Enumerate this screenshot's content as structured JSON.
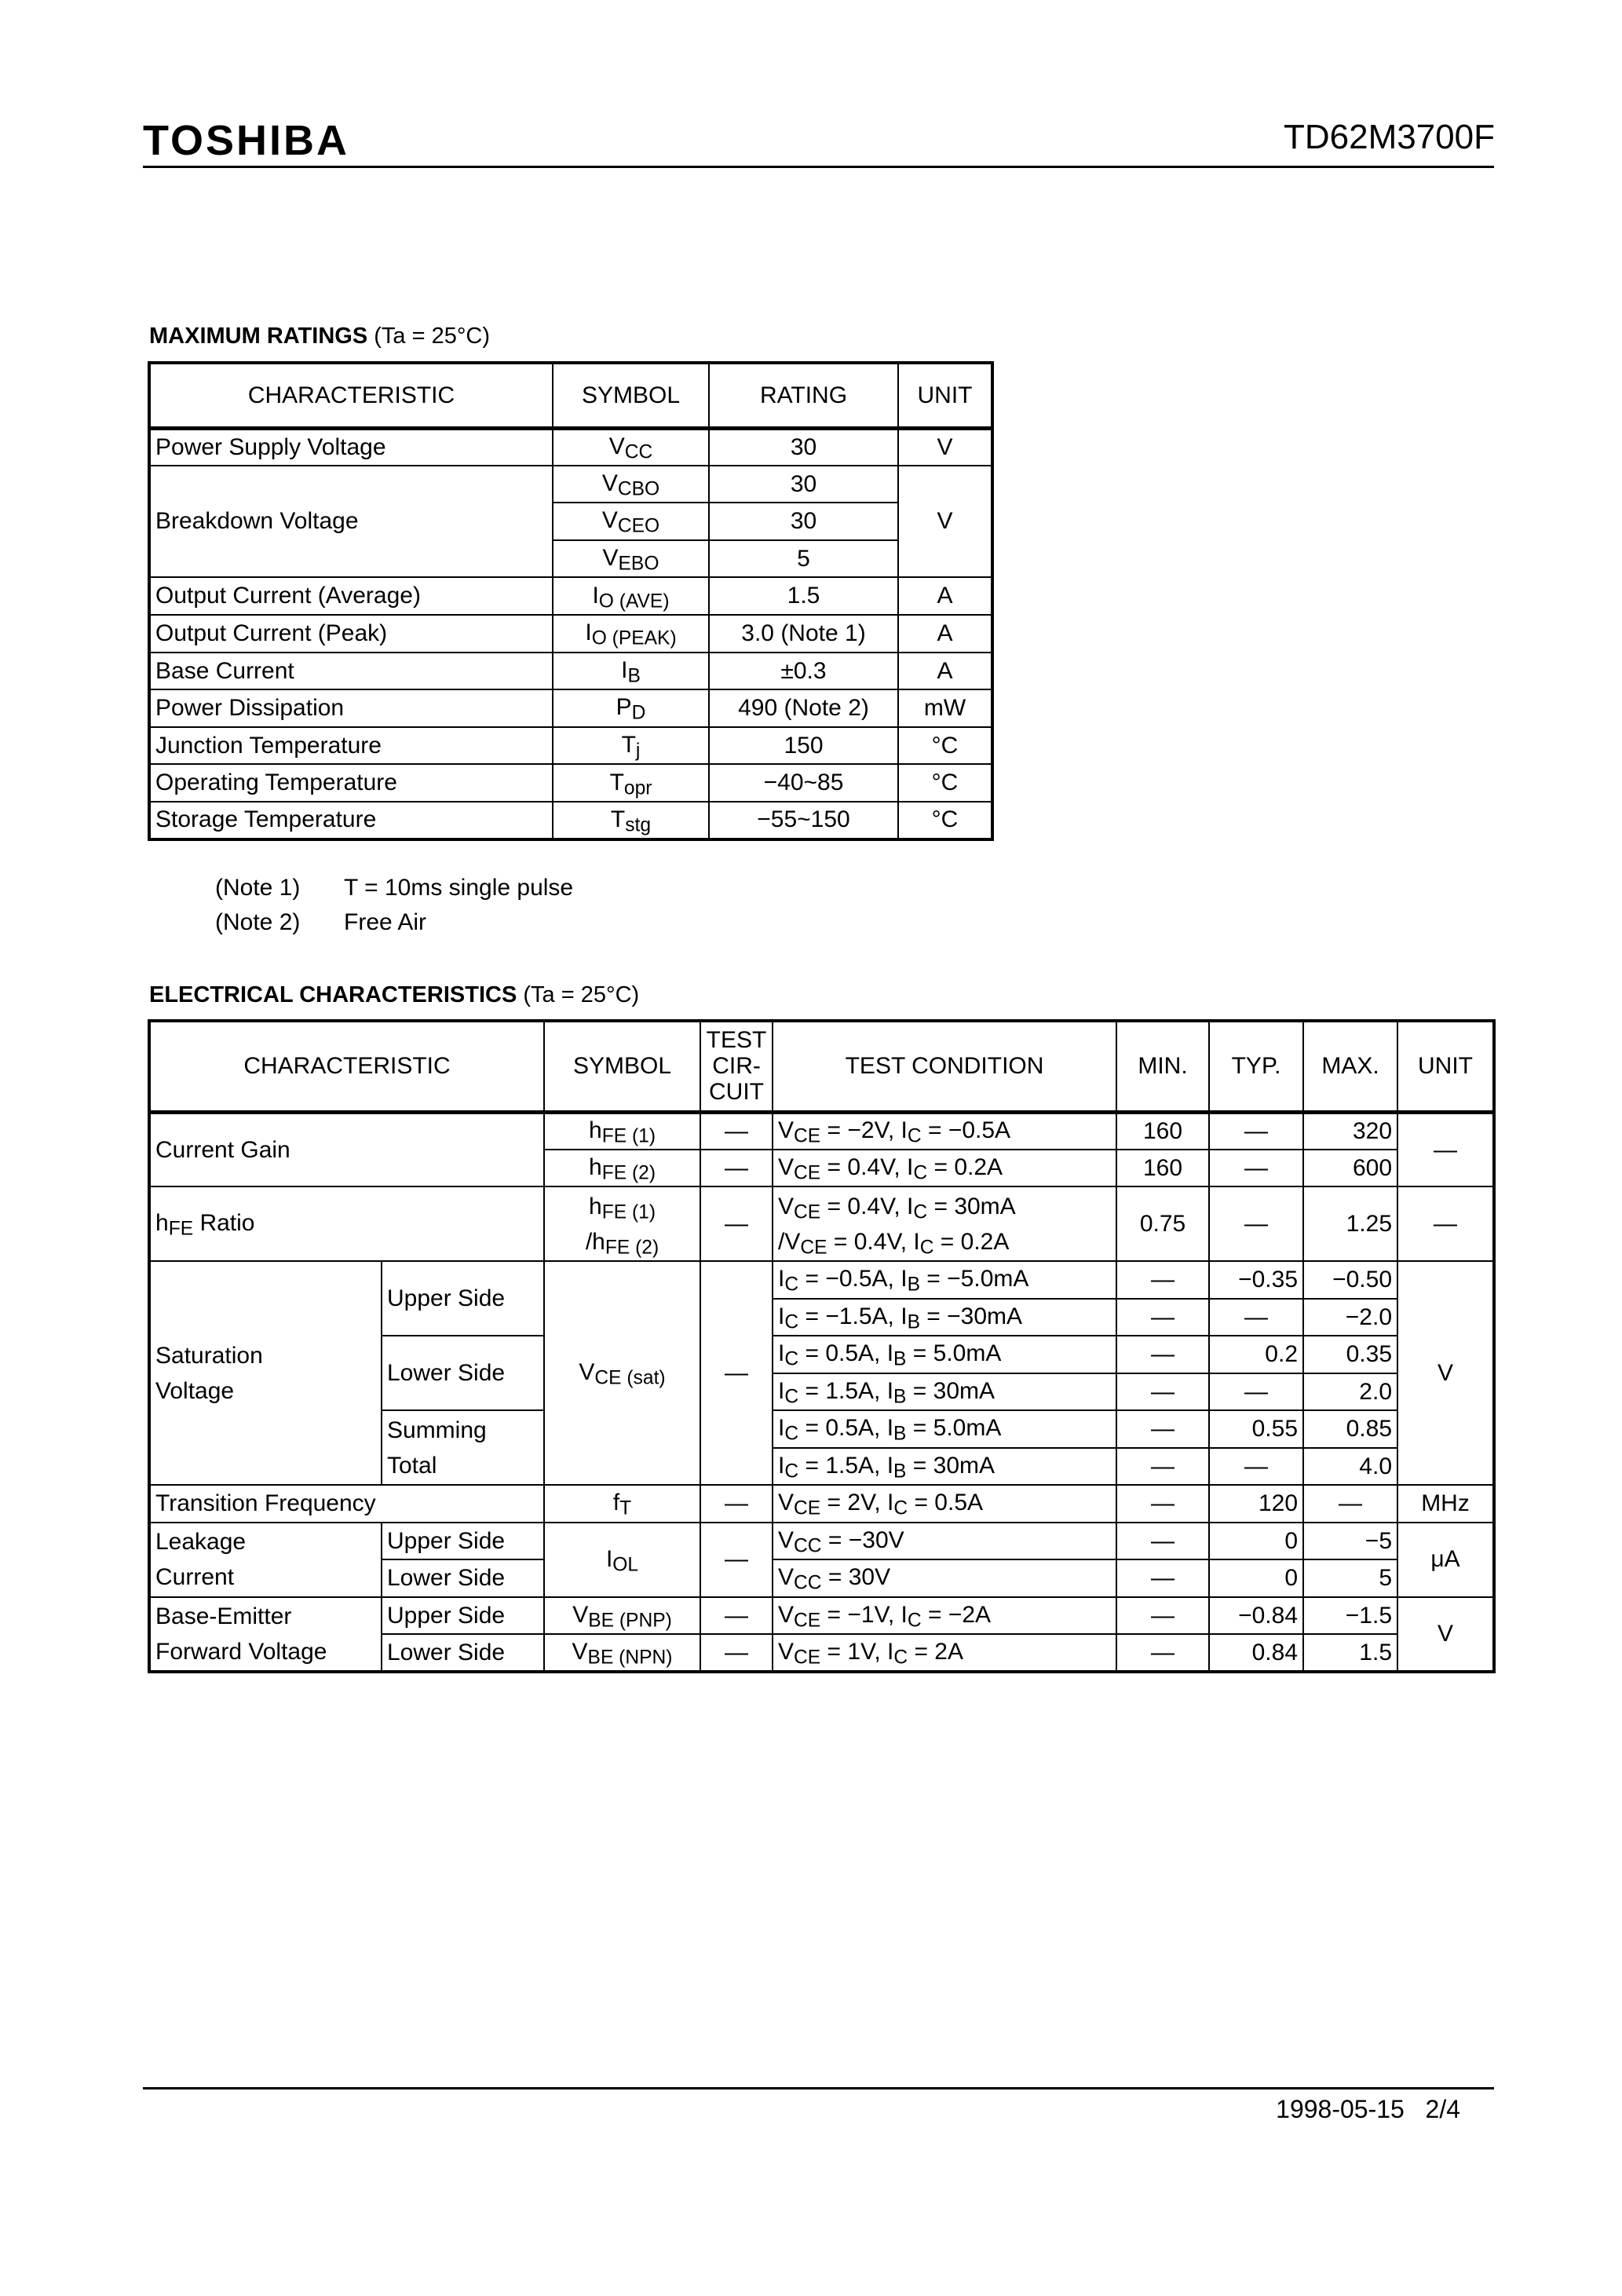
{
  "header": {
    "logo": "TOSHIBA",
    "part_number": "TD62M3700F"
  },
  "max_ratings": {
    "title": "MAXIMUM RATINGS",
    "condition": "(Ta = 25°C)",
    "columns": [
      "CHARACTERISTIC",
      "SYMBOL",
      "RATING",
      "UNIT"
    ],
    "rows": [
      [
        {
          "t": "Power Supply Voltage",
          "a": "l"
        },
        {
          "t": "V_{CC}"
        },
        {
          "t": "30"
        },
        {
          "t": "V"
        }
      ],
      [
        {
          "t": "Breakdown Voltage",
          "a": "l",
          "rs": 3
        },
        {
          "t": "V_{CBO}"
        },
        {
          "t": "30"
        },
        {
          "t": "V",
          "rs": 3
        }
      ],
      [
        {
          "t": "V_{CEO}"
        },
        {
          "t": "30"
        }
      ],
      [
        {
          "t": "V_{EBO}"
        },
        {
          "t": "5"
        }
      ],
      [
        {
          "t": "Output Current (Average)",
          "a": "l"
        },
        {
          "t": "I_{O (AVE)}"
        },
        {
          "t": "1.5"
        },
        {
          "t": "A"
        }
      ],
      [
        {
          "t": "Output Current (Peak)",
          "a": "l"
        },
        {
          "t": "I_{O (PEAK)}"
        },
        {
          "t": "3.0 (Note 1)"
        },
        {
          "t": "A"
        }
      ],
      [
        {
          "t": "Base Current",
          "a": "l"
        },
        {
          "t": "I_{B}"
        },
        {
          "t": "±0.3"
        },
        {
          "t": "A"
        }
      ],
      [
        {
          "t": "Power Dissipation",
          "a": "l"
        },
        {
          "t": "P_{D}"
        },
        {
          "t": "490 (Note 2)"
        },
        {
          "t": "mW"
        }
      ],
      [
        {
          "t": "Junction Temperature",
          "a": "l"
        },
        {
          "t": "T_{j}"
        },
        {
          "t": "150"
        },
        {
          "t": "°C"
        }
      ],
      [
        {
          "t": "Operating Temperature",
          "a": "l"
        },
        {
          "t": "T_{opr}"
        },
        {
          "t": "−40~85"
        },
        {
          "t": "°C"
        }
      ],
      [
        {
          "t": "Storage Temperature",
          "a": "l"
        },
        {
          "t": "T_{stg}"
        },
        {
          "t": "−55~150"
        },
        {
          "t": "°C"
        }
      ]
    ],
    "notes": [
      {
        "label": "(Note 1)",
        "text": "T = 10ms single pulse"
      },
      {
        "label": "(Note 2)",
        "text": "Free Air"
      }
    ]
  },
  "electrical": {
    "title": "ELECTRICAL CHARACTERISTICS",
    "condition": "(Ta = 25°C)",
    "header": [
      {
        "t": "CHARACTERISTIC",
        "cs": 2
      },
      {
        "t": "SYMBOL"
      },
      {
        "t": "TEST\nCIR-\nCUIT"
      },
      {
        "t": "TEST CONDITION"
      },
      {
        "t": "MIN."
      },
      {
        "t": "TYP."
      },
      {
        "t": "MAX."
      },
      {
        "t": "UNIT"
      }
    ],
    "rows": [
      [
        {
          "t": "Current Gain",
          "a": "l",
          "cs": 2,
          "rs": 2
        },
        {
          "t": "h_{FE (1)}"
        },
        {
          "t": "—"
        },
        {
          "t": "V_{CE} = −2V, I_{C} = −0.5A",
          "a": "l"
        },
        {
          "t": "160"
        },
        {
          "t": "—"
        },
        {
          "t": "320",
          "a": "r"
        },
        {
          "t": "—",
          "rs": 2
        }
      ],
      [
        {
          "t": "h_{FE (2)}"
        },
        {
          "t": "—"
        },
        {
          "t": "V_{CE} = 0.4V, I_{C} = 0.2A",
          "a": "l"
        },
        {
          "t": "160"
        },
        {
          "t": "—"
        },
        {
          "t": "600",
          "a": "r"
        }
      ],
      [
        {
          "t": "h_{FE} Ratio",
          "a": "l",
          "cs": 2,
          "rs": 2
        },
        {
          "t": "h_{FE (1)}\n/h_{FE (2)}",
          "rs": 2
        },
        {
          "t": "—",
          "rs": 2
        },
        {
          "t": "V_{CE} = 0.4V, I_{C} = 30mA\n/V_{CE} = 0.4V, I_{C} = 0.2A",
          "a": "l",
          "rs": 2
        },
        {
          "t": "0.75",
          "rs": 2
        },
        {
          "t": "—",
          "rs": 2
        },
        {
          "t": "1.25",
          "a": "r",
          "rs": 2
        },
        {
          "t": "—",
          "rs": 2
        }
      ],
      [],
      [
        {
          "t": "Saturation\nVoltage",
          "a": "l",
          "rs": 6
        },
        {
          "t": "Upper Side",
          "a": "l",
          "rs": 2
        },
        {
          "t": "V_{CE (sat)}",
          "rs": 6
        },
        {
          "t": "—",
          "rs": 6
        },
        {
          "t": "I_{C} = −0.5A, I_{B} = −5.0mA",
          "a": "l"
        },
        {
          "t": "—"
        },
        {
          "t": "−0.35",
          "a": "r"
        },
        {
          "t": "−0.50",
          "a": "r"
        },
        {
          "t": "V",
          "rs": 6
        }
      ],
      [
        {
          "t": "I_{C} = −1.5A, I_{B} = −30mA",
          "a": "l"
        },
        {
          "t": "—"
        },
        {
          "t": "—"
        },
        {
          "t": "−2.0",
          "a": "r"
        }
      ],
      [
        {
          "t": "Lower Side",
          "a": "l",
          "rs": 2
        },
        {
          "t": "I_{C} = 0.5A, I_{B} = 5.0mA",
          "a": "l"
        },
        {
          "t": "—"
        },
        {
          "t": "0.2",
          "a": "r"
        },
        {
          "t": "0.35",
          "a": "r"
        }
      ],
      [
        {
          "t": "I_{C} = 1.5A, I_{B} = 30mA",
          "a": "l"
        },
        {
          "t": "—"
        },
        {
          "t": "—"
        },
        {
          "t": "2.0",
          "a": "r"
        }
      ],
      [
        {
          "t": "Summing\nTotal",
          "a": "l",
          "rs": 2
        },
        {
          "t": "I_{C} = 0.5A, I_{B} = 5.0mA",
          "a": "l"
        },
        {
          "t": "—"
        },
        {
          "t": "0.55",
          "a": "r"
        },
        {
          "t": "0.85",
          "a": "r"
        }
      ],
      [
        {
          "t": "I_{C} = 1.5A, I_{B} = 30mA",
          "a": "l"
        },
        {
          "t": "—"
        },
        {
          "t": "—"
        },
        {
          "t": "4.0",
          "a": "r"
        }
      ],
      [
        {
          "t": "Transition Frequency",
          "a": "l",
          "cs": 2
        },
        {
          "t": "f_{T}"
        },
        {
          "t": "—"
        },
        {
          "t": "V_{CE} = 2V, I_{C} = 0.5A",
          "a": "l"
        },
        {
          "t": "—"
        },
        {
          "t": "120",
          "a": "r"
        },
        {
          "t": "—"
        },
        {
          "t": "MHz"
        }
      ],
      [
        {
          "t": "Leakage\nCurrent",
          "a": "l",
          "rs": 2
        },
        {
          "t": "Upper Side",
          "a": "l"
        },
        {
          "t": "I_{OL}",
          "rs": 2
        },
        {
          "t": "—",
          "rs": 2
        },
        {
          "t": "V_{CC} = −30V",
          "a": "l"
        },
        {
          "t": "—"
        },
        {
          "t": "0",
          "a": "r"
        },
        {
          "t": "−5",
          "a": "r"
        },
        {
          "t": "μA",
          "rs": 2
        }
      ],
      [
        {
          "t": "Lower Side",
          "a": "l"
        },
        {
          "t": "V_{CC} = 30V",
          "a": "l"
        },
        {
          "t": "—"
        },
        {
          "t": "0",
          "a": "r"
        },
        {
          "t": "5",
          "a": "r"
        }
      ],
      [
        {
          "t": "Base-Emitter\nForward Voltage",
          "a": "l",
          "rs": 2
        },
        {
          "t": "Upper Side",
          "a": "l"
        },
        {
          "t": "V_{BE (PNP)}"
        },
        {
          "t": "—"
        },
        {
          "t": "V_{CE} = −1V, I_{C} = −2A",
          "a": "l"
        },
        {
          "t": "—"
        },
        {
          "t": "−0.84",
          "a": "r"
        },
        {
          "t": "−1.5",
          "a": "r"
        },
        {
          "t": "V",
          "rs": 2
        }
      ],
      [
        {
          "t": "Lower Side",
          "a": "l"
        },
        {
          "t": "V_{BE (NPN)}"
        },
        {
          "t": "—"
        },
        {
          "t": "V_{CE} = 1V, I_{C} = 2A",
          "a": "l"
        },
        {
          "t": "—"
        },
        {
          "t": "0.84",
          "a": "r"
        },
        {
          "t": "1.5",
          "a": "r"
        }
      ]
    ]
  },
  "footer": {
    "date": "1998-05-15",
    "page": "2/4"
  }
}
